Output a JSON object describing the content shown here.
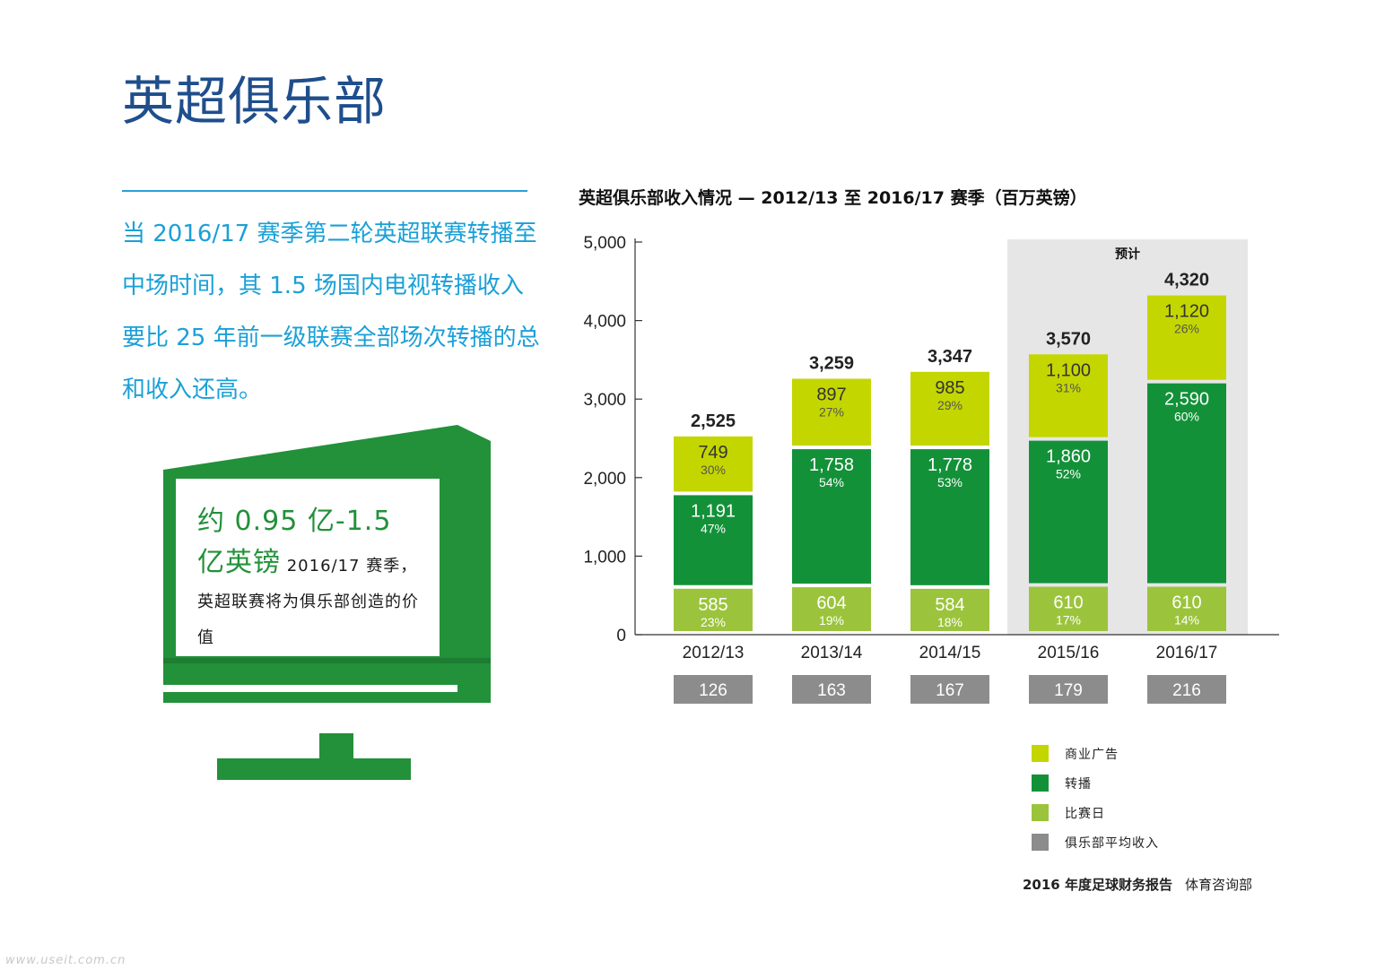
{
  "page": {
    "title": "英超俱乐部",
    "intro": "当 2016/17 赛季第二轮英超联赛转播至中场时间，其 1.5 场国内电视转播收入要比 25 年前一级联赛全部场次转播的总和收入还高。",
    "tv_highlight": "约 0.95 亿-1.5 亿英镑",
    "tv_body": " 2016/17 赛季，英超联赛将为俱乐部创造的价值",
    "footer_report": "2016 年度足球财务报告",
    "footer_dept": "体育咨询部",
    "watermark": "www.useit.com.cn"
  },
  "colors": {
    "commercial": "#c4d600",
    "broadcasting": "#139139",
    "matchday": "#9bc43c",
    "average": "#8c8c8c",
    "forecast_bg": "#e6e6e6",
    "title": "#1f4e8c",
    "intro": "#1aa0d8"
  },
  "chart_data": {
    "type": "bar",
    "stacked": true,
    "title": "英超俱乐部收入情况 — 2012/13 至 2016/17 赛季（百万英镑）",
    "categories": [
      "2012/13",
      "2013/14",
      "2014/15",
      "2015/16",
      "2016/17"
    ],
    "ylim": [
      0,
      5000
    ],
    "yticks": [
      0,
      1000,
      2000,
      3000,
      4000,
      5000
    ],
    "ytick_labels": [
      "0",
      "1,000",
      "2,000",
      "3,000",
      "4,000",
      "5,000"
    ],
    "forecast_label": "预计",
    "forecast_categories": [
      "2015/16",
      "2016/17"
    ],
    "series": [
      {
        "name": "比赛日",
        "color_key": "matchday",
        "values": [
          585,
          604,
          584,
          610,
          610
        ],
        "labels": [
          "585",
          "604",
          "584",
          "610",
          "610"
        ],
        "shares": [
          "23%",
          "19%",
          "18%",
          "17%",
          "14%"
        ]
      },
      {
        "name": "转播",
        "color_key": "broadcasting",
        "values": [
          1191,
          1758,
          1778,
          1860,
          2590
        ],
        "labels": [
          "1,191",
          "1,758",
          "1,778",
          "1,860",
          "2,590"
        ],
        "shares": [
          "47%",
          "54%",
          "53%",
          "52%",
          "60%"
        ]
      },
      {
        "name": "商业广告",
        "color_key": "commercial",
        "values": [
          749,
          897,
          985,
          1100,
          1120
        ],
        "labels": [
          "749",
          "897",
          "985",
          "1,100",
          "1,120"
        ],
        "shares": [
          "30%",
          "27%",
          "29%",
          "31%",
          "26%"
        ]
      }
    ],
    "totals": [
      2525,
      3259,
      3347,
      3570,
      4320
    ],
    "total_labels": [
      "2,525",
      "3,259",
      "3,347",
      "3,570",
      "4,320"
    ],
    "average": {
      "name": "俱乐部平均收入",
      "color_key": "average",
      "labels": [
        "126",
        "163",
        "167",
        "179",
        "216"
      ]
    },
    "legend": [
      {
        "name": "商业广告",
        "color_key": "commercial"
      },
      {
        "name": "转播",
        "color_key": "broadcasting"
      },
      {
        "name": "比赛日",
        "color_key": "matchday"
      },
      {
        "name": "俱乐部平均收入",
        "color_key": "average"
      }
    ]
  }
}
